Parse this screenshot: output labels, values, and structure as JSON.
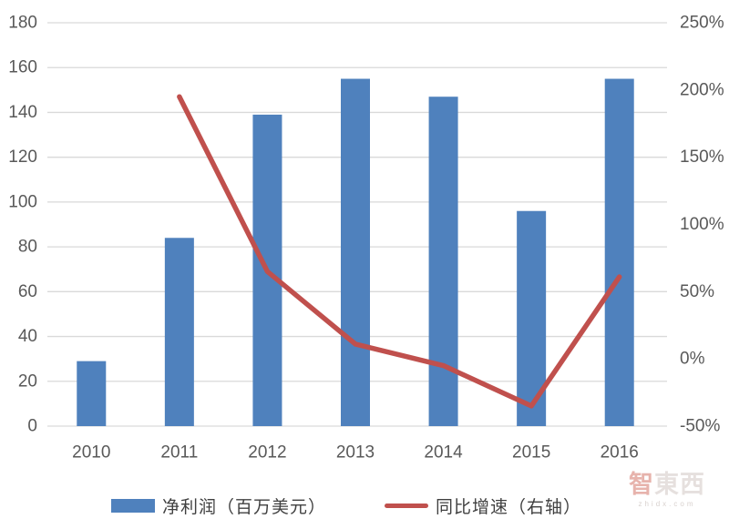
{
  "colors": {
    "bar": "#4F81BD",
    "line": "#C0504D",
    "grid": "#D9D9D9",
    "tick_text": "#595959"
  },
  "chart_data": {
    "type": "combo",
    "title": "",
    "xlabel": "",
    "ylabel": "",
    "categories": [
      "2010",
      "2011",
      "2012",
      "2013",
      "2014",
      "2015",
      "2016"
    ],
    "series": [
      {
        "name": "净利润（百万美元）",
        "type": "bar",
        "axis": "left",
        "color": "#4F81BD",
        "values": [
          29,
          84,
          139,
          155,
          147,
          96,
          155
        ]
      },
      {
        "name": "同比增速（右轴）",
        "type": "line",
        "axis": "right",
        "unit": "%",
        "color": "#C0504D",
        "values": [
          null,
          195,
          65,
          11,
          -5,
          -35,
          61
        ]
      }
    ],
    "left_axis": {
      "min": 0,
      "max": 180,
      "step": 20,
      "tick_labels": [
        "0",
        "20",
        "40",
        "60",
        "80",
        "100",
        "120",
        "140",
        "160",
        "180"
      ]
    },
    "right_axis": {
      "min": -50,
      "max": 250,
      "step": 50,
      "tick_labels": [
        "-50%",
        "0%",
        "50%",
        "100%",
        "150%",
        "200%",
        "250%"
      ]
    },
    "grid": "horizontal",
    "legend_position": "bottom"
  },
  "legend": {
    "items": [
      {
        "label": "净利润（百万美元）",
        "swatch": "bar",
        "color": "#4F81BD"
      },
      {
        "label": "同比增速（右轴）",
        "swatch": "line",
        "color": "#C0504D"
      }
    ]
  },
  "watermark": {
    "char1": "智",
    "rest": "東西",
    "sub": "zhidx.com"
  }
}
